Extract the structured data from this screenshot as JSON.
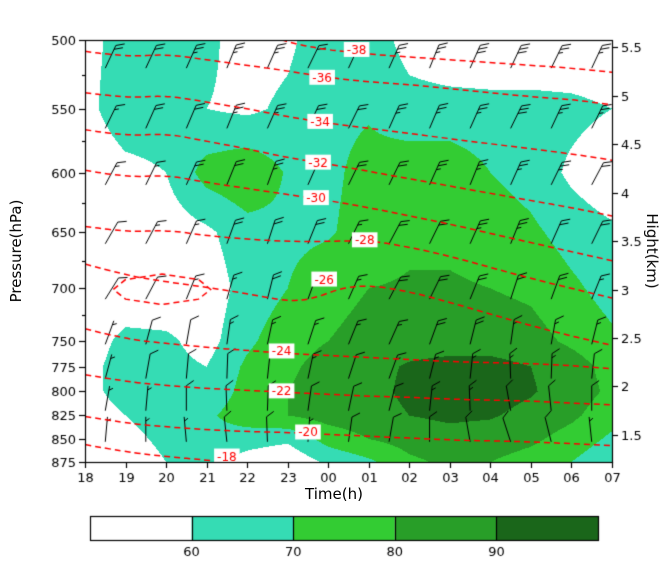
{
  "chart_data": {
    "type": "heatmap",
    "title": "",
    "xlabel": "Time(h)",
    "ylabel_left": "Pressure(hPa)",
    "ylabel_right": "Hight(km)",
    "x_ticks": [
      "18",
      "19",
      "20",
      "21",
      "22",
      "23",
      "00",
      "01",
      "02",
      "03",
      "04",
      "05",
      "06",
      "07"
    ],
    "pressure_ticks": [
      500,
      550,
      600,
      650,
      700,
      750,
      775,
      800,
      825,
      850,
      875
    ],
    "pressure_minor_ticks": [
      525,
      575,
      625,
      675,
      725
    ],
    "height_ticks": [
      5.5,
      5,
      4.5,
      4,
      3.5,
      3,
      2.5,
      2,
      1.5
    ],
    "frame_color": "#000000",
    "humidity": {
      "legend_levels": [
        "60",
        "70",
        "80",
        "90"
      ],
      "band_colors": [
        "#FFFFFF",
        "#35DCB4",
        "#33CC33",
        "#289E28",
        "#1A661A"
      ],
      "pressures": [
        500,
        550,
        600,
        650,
        700,
        750,
        775,
        800,
        825,
        850,
        875
      ],
      "time_hours_offset": [
        0,
        1,
        2,
        3,
        4,
        5,
        6,
        7,
        8,
        9,
        10,
        11,
        12,
        13
      ],
      "grid": [
        [
          55,
          66,
          66,
          62,
          56,
          58,
          66,
          66,
          56,
          52,
          50,
          50,
          50,
          50
        ],
        [
          56,
          68,
          67,
          60,
          58,
          62,
          68,
          69,
          64,
          64,
          64,
          64,
          63,
          60
        ],
        [
          50,
          56,
          60,
          74,
          78,
          69,
          68,
          73,
          76,
          76,
          70,
          66,
          58,
          52
        ],
        [
          50,
          52,
          54,
          58,
          66,
          68,
          69,
          74,
          78,
          78,
          76,
          72,
          66,
          62
        ],
        [
          50,
          52,
          52,
          54,
          64,
          70,
          76,
          80,
          81,
          81,
          80,
          78,
          72,
          66
        ],
        [
          54,
          63,
          62,
          56,
          68,
          76,
          80,
          84,
          86,
          86,
          86,
          84,
          78,
          72
        ],
        [
          56,
          65,
          63,
          60,
          72,
          78,
          84,
          87,
          91,
          93,
          93,
          90,
          85,
          76
        ],
        [
          55,
          66,
          64,
          62,
          74,
          80,
          85,
          87,
          92,
          94,
          94,
          91,
          85,
          78
        ],
        [
          52,
          60,
          66,
          68,
          76,
          80,
          84,
          86,
          90,
          92,
          91,
          87,
          82,
          74
        ],
        [
          50,
          56,
          63,
          66,
          64,
          62,
          74,
          80,
          84,
          86,
          85,
          82,
          76,
          68
        ],
        [
          48,
          52,
          60,
          64,
          56,
          52,
          62,
          68,
          78,
          82,
          80,
          76,
          70,
          62
        ]
      ]
    },
    "isotherms": {
      "color": "#FF0000",
      "values": [
        -38,
        -36,
        -34,
        -32,
        -30,
        -28,
        -26,
        -24,
        -22,
        -20,
        -18
      ],
      "lines": [
        {
          "value": -38,
          "label_t": 6.7,
          "label_p": 507,
          "points": [
            [
              4.6,
              498
            ],
            [
              5.2,
              503
            ],
            [
              6.0,
              507
            ],
            [
              7.0,
              510
            ],
            [
              8.0,
              512
            ],
            [
              9.0,
              514
            ],
            [
              10.0,
              516
            ],
            [
              11.0,
              518
            ],
            [
              12.0,
              520
            ],
            [
              13.0,
              523
            ]
          ]
        },
        {
          "value": -36,
          "label_t": 5.85,
          "label_p": 527,
          "points": [
            [
              0,
              508
            ],
            [
              1,
              512
            ],
            [
              2,
              510
            ],
            [
              3,
              514
            ],
            [
              4,
              518
            ],
            [
              5,
              522
            ],
            [
              6,
              527
            ],
            [
              7,
              530
            ],
            [
              8,
              532
            ],
            [
              9,
              535
            ],
            [
              10,
              538
            ],
            [
              11,
              541
            ],
            [
              12,
              543
            ],
            [
              13,
              547
            ]
          ]
        },
        {
          "value": -34,
          "label_t": 5.8,
          "label_p": 560,
          "points": [
            [
              0,
              538
            ],
            [
              1,
              542
            ],
            [
              2,
              540
            ],
            [
              3,
              545
            ],
            [
              4,
              550
            ],
            [
              5,
              556
            ],
            [
              6,
              561
            ],
            [
              7,
              565
            ],
            [
              8,
              569
            ],
            [
              9,
              573
            ],
            [
              10,
              577
            ],
            [
              11,
              581
            ],
            [
              12,
              585
            ],
            [
              13,
              590
            ]
          ]
        },
        {
          "value": -32,
          "label_t": 5.75,
          "label_p": 592,
          "points": [
            [
              0,
              566
            ],
            [
              1,
              571
            ],
            [
              2,
              569
            ],
            [
              3,
              575
            ],
            [
              4,
              581
            ],
            [
              5,
              588
            ],
            [
              6,
              593
            ],
            [
              7,
              599
            ],
            [
              8,
              605
            ],
            [
              9,
              611
            ],
            [
              10,
              617
            ],
            [
              11,
              623
            ],
            [
              12,
              629
            ],
            [
              13,
              636
            ]
          ]
        },
        {
          "value": -30,
          "label_t": 5.7,
          "label_p": 621,
          "points": [
            [
              0,
              598
            ],
            [
              1,
              604
            ],
            [
              2,
              602
            ],
            [
              3,
              608
            ],
            [
              4,
              613
            ],
            [
              5,
              618
            ],
            [
              6,
              623
            ],
            [
              7,
              629
            ],
            [
              8,
              636
            ],
            [
              9,
              643
            ],
            [
              10,
              651
            ],
            [
              11,
              659
            ],
            [
              12,
              667
            ],
            [
              13,
              675
            ]
          ]
        },
        {
          "value": -28,
          "label_t": 6.9,
          "label_p": 657,
          "points": [
            [
              0,
              645
            ],
            [
              1,
              650
            ],
            [
              2,
              648
            ],
            [
              3,
              653
            ],
            [
              4,
              656
            ],
            [
              5,
              658
            ],
            [
              6,
              658
            ],
            [
              7,
              657
            ],
            [
              8,
              663
            ],
            [
              9,
              671
            ],
            [
              10,
              681
            ],
            [
              11,
              691
            ],
            [
              12,
              700
            ],
            [
              13,
              709
            ]
          ]
        },
        {
          "value": -26,
          "label_t": 5.9,
          "label_p": 692,
          "points": [
            [
              0,
              678
            ],
            [
              1,
              688
            ],
            [
              2,
              694
            ],
            [
              3,
              699
            ],
            [
              4,
              705
            ],
            [
              5,
              712
            ],
            [
              5.6,
              710
            ],
            [
              6.3,
              700
            ],
            [
              7,
              697
            ],
            [
              8,
              703
            ],
            [
              9,
              713
            ],
            [
              10,
              724
            ],
            [
              11,
              735
            ],
            [
              12,
              745
            ],
            [
              13,
              754
            ]
          ]
        },
        {
          "value": -24,
          "label_t": 4.85,
          "label_p": 760,
          "points": [
            [
              0,
              738
            ],
            [
              1,
              748
            ],
            [
              2,
              752
            ],
            [
              3,
              756
            ],
            [
              4,
              759
            ],
            [
              5,
              762
            ],
            [
              6,
              764
            ],
            [
              7,
              766
            ],
            [
              8,
              768
            ],
            [
              9,
              770
            ],
            [
              10,
              771
            ],
            [
              11,
              772
            ],
            [
              12,
              774
            ],
            [
              13,
              777
            ]
          ]
        },
        {
          "value": -22,
          "label_t": 4.85,
          "label_p": 800,
          "points": [
            [
              0,
              783
            ],
            [
              1,
              790
            ],
            [
              2,
              794
            ],
            [
              3,
              797
            ],
            [
              4,
              799
            ],
            [
              5,
              801
            ],
            [
              6,
              803
            ],
            [
              7,
              805
            ],
            [
              8,
              806
            ],
            [
              9,
              808
            ],
            [
              10,
              809
            ],
            [
              11,
              810
            ],
            [
              12,
              812
            ],
            [
              13,
              814
            ]
          ]
        },
        {
          "value": -20,
          "label_t": 5.5,
          "label_p": 843,
          "points": [
            [
              0,
              826
            ],
            [
              1,
              833
            ],
            [
              2,
              837
            ],
            [
              3,
              840
            ],
            [
              4,
              842
            ],
            [
              5,
              843
            ],
            [
              6,
              845
            ],
            [
              7,
              847
            ],
            [
              8,
              849
            ],
            [
              9,
              851
            ],
            [
              10,
              852
            ],
            [
              11,
              853
            ],
            [
              12,
              855
            ],
            [
              13,
              857
            ]
          ]
        },
        {
          "value": -18,
          "label_t": 3.5,
          "label_p": 869,
          "points": [
            [
              0,
              856
            ],
            [
              1,
              864
            ],
            [
              2,
              869
            ],
            [
              3,
              873
            ],
            [
              3.8,
              876
            ]
          ]
        },
        {
          "value": -26,
          "closed": true,
          "label_t": null,
          "label_p": null,
          "points": [
            [
              0.7,
              701
            ],
            [
              1.0,
              692
            ],
            [
              1.9,
              687
            ],
            [
              2.8,
              692
            ],
            [
              3.1,
              701
            ],
            [
              2.8,
              710
            ],
            [
              1.9,
              715
            ],
            [
              1.0,
              710
            ],
            [
              0.7,
              701
            ]
          ]
        }
      ]
    },
    "wind_barbs": {
      "color": "#000000",
      "time_offsets": [
        0.5,
        1.5,
        2.5,
        3.5,
        4.5,
        5.5,
        6.5,
        7.5,
        8.5,
        9.5,
        10.5,
        11.5,
        12.5
      ],
      "pressures": [
        520,
        565,
        610,
        660,
        710,
        753,
        787,
        820,
        853
      ],
      "speeds_kt": [
        [
          20,
          20,
          25,
          25,
          25,
          20,
          20,
          25,
          25,
          30,
          30,
          25,
          25
        ],
        [
          15,
          20,
          20,
          25,
          25,
          20,
          20,
          25,
          25,
          25,
          30,
          25,
          25
        ],
        [
          15,
          15,
          20,
          20,
          25,
          20,
          20,
          20,
          25,
          25,
          25,
          25,
          20
        ],
        [
          10,
          15,
          15,
          20,
          20,
          20,
          15,
          20,
          20,
          25,
          25,
          20,
          20
        ],
        [
          10,
          10,
          15,
          15,
          20,
          15,
          15,
          20,
          20,
          20,
          20,
          20,
          15
        ],
        [
          5,
          10,
          10,
          15,
          15,
          15,
          15,
          15,
          20,
          20,
          15,
          15,
          15
        ],
        [
          5,
          10,
          10,
          10,
          15,
          15,
          10,
          15,
          15,
          15,
          15,
          15,
          10
        ],
        [
          5,
          5,
          10,
          10,
          10,
          10,
          10,
          10,
          15,
          15,
          10,
          10,
          10
        ],
        [
          5,
          5,
          5,
          10,
          10,
          5,
          10,
          10,
          10,
          10,
          10,
          10,
          5
        ]
      ],
      "staff_angles_deg": [
        [
          65,
          65,
          66,
          68,
          66,
          64,
          65,
          66,
          68,
          66,
          65,
          64,
          65
        ],
        [
          64,
          66,
          67,
          68,
          66,
          65,
          64,
          66,
          67,
          66,
          64,
          65,
          64
        ],
        [
          62,
          64,
          66,
          68,
          70,
          66,
          64,
          64,
          66,
          68,
          66,
          64,
          62
        ],
        [
          60,
          62,
          66,
          70,
          72,
          68,
          64,
          62,
          64,
          66,
          68,
          66,
          64
        ],
        [
          58,
          62,
          68,
          74,
          76,
          70,
          66,
          62,
          64,
          68,
          72,
          70,
          68
        ],
        [
          70,
          75,
          80,
          82,
          78,
          72,
          68,
          66,
          70,
          76,
          82,
          80,
          76
        ],
        [
          75,
          80,
          85,
          88,
          84,
          78,
          72,
          70,
          76,
          84,
          92,
          88,
          84
        ],
        [
          80,
          85,
          90,
          92,
          88,
          82,
          78,
          76,
          84,
          92,
          100,
          96,
          90
        ],
        [
          85,
          90,
          95,
          96,
          92,
          86,
          82,
          80,
          90,
          100,
          108,
          104,
          96
        ]
      ]
    }
  }
}
